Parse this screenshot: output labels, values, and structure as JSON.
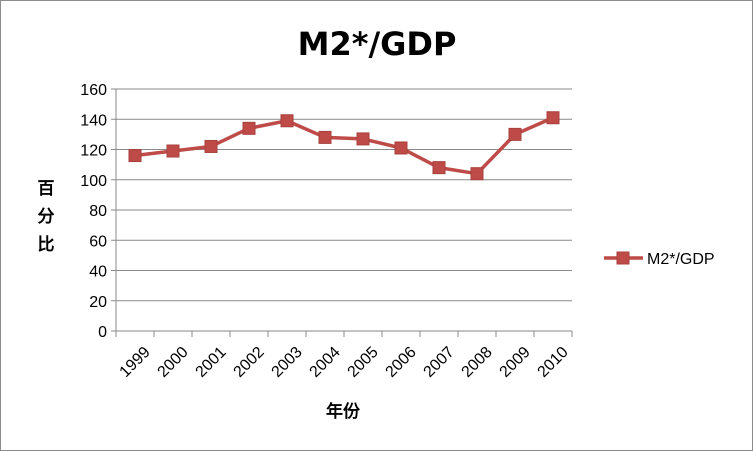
{
  "chart_data": {
    "type": "line",
    "title": "M2*/GDP",
    "xlabel": "年份",
    "ylabel": "百分比",
    "ylabel_chars": [
      "百",
      "分",
      "比"
    ],
    "categories": [
      "1999",
      "2000",
      "2001",
      "2002",
      "2003",
      "2004",
      "2005",
      "2006",
      "2007",
      "2008",
      "2009",
      "2010"
    ],
    "series": [
      {
        "name": "M2*/GDP",
        "values": [
          116,
          119,
          122,
          134,
          139,
          128,
          127,
          121,
          108,
          104,
          130,
          141
        ],
        "color": "#be4b48"
      }
    ],
    "yticks": [
      "0",
      "20",
      "40",
      "60",
      "80",
      "100",
      "120",
      "140",
      "160"
    ],
    "ylim": [
      0,
      160
    ],
    "grid": true,
    "legend_position": "right",
    "marker": "square"
  }
}
